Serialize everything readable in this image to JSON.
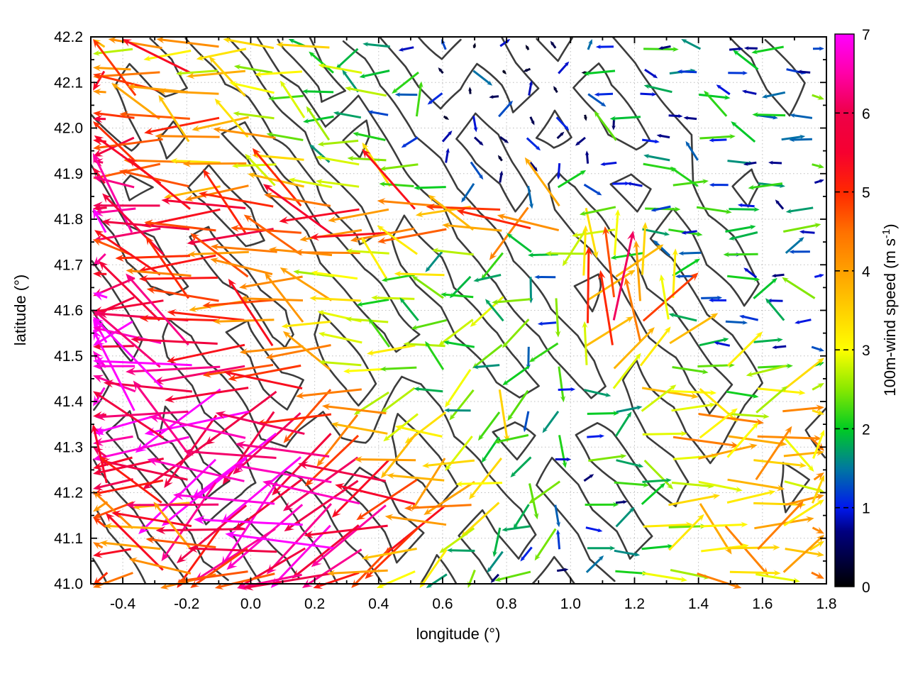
{
  "chart_data": {
    "type": "quiver+contour",
    "title": "",
    "xlabel": "longitude (°)",
    "ylabel": "latitude (°)",
    "xlim": [
      -0.5,
      1.8
    ],
    "ylim": [
      41.0,
      42.2
    ],
    "xticks": {
      "values": [
        -0.4,
        -0.2,
        0.0,
        0.2,
        0.4,
        0.6,
        0.8,
        1.0,
        1.2,
        1.4,
        1.6,
        1.8
      ],
      "labels": [
        "-0.4",
        "-0.2",
        "0.0",
        "0.2",
        "0.4",
        "0.6",
        "0.8",
        "1.0",
        "1.2",
        "1.4",
        "1.6",
        "1.8"
      ],
      "minor_step": 0.1
    },
    "yticks": {
      "values": [
        41.0,
        41.1,
        41.2,
        41.3,
        41.4,
        41.5,
        41.6,
        41.7,
        41.8,
        41.9,
        42.0,
        42.1,
        42.2
      ],
      "labels": [
        "41.0",
        "41.1",
        "41.2",
        "41.3",
        "41.4",
        "41.5",
        "41.6",
        "41.7",
        "41.8",
        "41.9",
        "42.0",
        "42.1",
        "42.2"
      ],
      "minor_step": 0.05
    },
    "grid": {
      "x_every": 0.2,
      "y_every": 0.1,
      "style": "dotted",
      "color": "#bdbdbd"
    },
    "colorbar": {
      "label": "100m-wind speed (m s⁻¹)",
      "label_parts": {
        "pre": "100m-wind speed (m s",
        "sup": "-1",
        "post": ")"
      },
      "min": 0,
      "max": 7,
      "ticks": [
        0,
        1,
        2,
        3,
        4,
        5,
        6,
        7
      ],
      "tick_labels": [
        "0",
        "1",
        "2",
        "3",
        "4",
        "5",
        "6",
        "7"
      ],
      "palette": [
        [
          0.0,
          "#000000"
        ],
        [
          0.7,
          "#000080"
        ],
        [
          1.0,
          "#0018ee"
        ],
        [
          1.5,
          "#0078a0"
        ],
        [
          2.0,
          "#00cc22"
        ],
        [
          2.5,
          "#88e800"
        ],
        [
          3.0,
          "#ffff00"
        ],
        [
          3.5,
          "#ffd000"
        ],
        [
          4.0,
          "#ffa000"
        ],
        [
          4.5,
          "#ff7000"
        ],
        [
          5.0,
          "#ff2800"
        ],
        [
          5.5,
          "#f60030"
        ],
        [
          6.0,
          "#ee0048"
        ],
        [
          6.5,
          "#ff00a8"
        ],
        [
          7.0,
          "#ff00ff"
        ]
      ]
    },
    "vector_field": {
      "comment": "Wind vectors estimated from image on a regular lon/lat grid. speed_rows: digits = m/s (0-7). dir_rows: 0=E,1=NE,2=N,3=NW,4=W,5=SW,6=S,7=SE. Row 0 = north (lat 42.2), rows go south.",
      "nx": 26,
      "ny": 24,
      "lon_range": [
        -0.5,
        1.8
      ],
      "lat_range": [
        41.0,
        42.2
      ],
      "speed_units": "m/s",
      "speed_rows": [
        "43434332322110100112121121",
        "54453423232201001021211211",
        "45544332223110010111221112",
        "65455433221201101012112121",
        "56544342332110010121121211",
        "65543433232211001112212112",
        "66554434333221112111221221",
        "66655655454544544322122112",
        "76665565545454454332212221",
        "65655445443323222332111211",
        "56545544333232221343212111",
        "76655454432322322454311212",
        "77665544333223221565321121",
        "76766554432332212454421211",
        "77676655433223222343223232",
        "76767665543322321234332333",
        "67766766544332212223343343",
        "76676776654433222123434434",
        "65667767665443321223343343",
        "56566776766544322122334434",
        "45546677676554321212343343",
        "54455667766543222123234434",
        "45445566765432211222333443",
        "54544556654322121123343344"
      ],
      "dir_rows": [
        "44344443454426175240430440",
        "44434444344527261547040304",
        "43444344434451625740403440",
        "44344443444226157264043044",
        "44434344344512671530404304",
        "43444444344427516240430440",
        "44344434443445261704034040",
        "44434443444344453640400434",
        "43444344344443444540040404",
        "44344443444354534424340414",
        "44344344443445464212140340",
        "44434444344434546122204143",
        "44344443444345354221240434",
        "44434434443444565122104040",
        "44344444344435456211001040",
        "44345454545545650010070010",
        "43445455454554565001000100",
        "44345454554545546010010070",
        "44435545455454550007001001",
        "34445455454545465100000100",
        "44344545545454556001070001",
        "43445454554545645010007010",
        "44434545455454552000100100",
        "44345455454556540100070010"
      ]
    },
    "contours": {
      "comment": "Terrain elevation isolines (dark grey). Relative elevation raster estimated from image; marching squares drawn at levels.",
      "color": "#3c3c3c",
      "levels": [
        4.5,
        5.5,
        6.5
      ],
      "grid_rows": [
        "34565765676565434543",
        "45456576565654543454",
        "54654654654545454343",
        "46545465565465654534",
        "54564546456556545443",
        "45456554545654654534",
        "54654645454565565443",
        "45565454655456456534",
        "56456565765654545445",
        "45645767676545454354",
        "54567676765654543443",
        "45456767656545434334"
      ]
    }
  }
}
